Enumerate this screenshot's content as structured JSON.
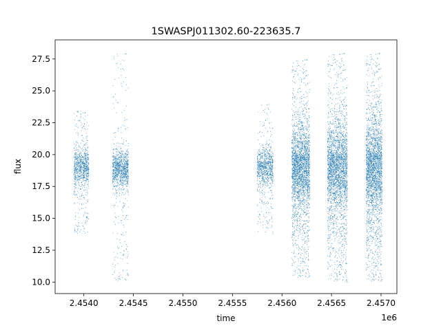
{
  "chart_data": {
    "type": "scatter",
    "title": "1SWASPJ011302.60-223635.7",
    "xlabel": "time",
    "ylabel": "flux",
    "x_offset_label": "1e6",
    "xlim": [
      2453710,
      2457160
    ],
    "ylim": [
      9.1,
      29.0
    ],
    "x_ticks": [
      {
        "value": 2454000,
        "label": "2.4540"
      },
      {
        "value": 2454500,
        "label": "2.4545"
      },
      {
        "value": 2455000,
        "label": "2.4550"
      },
      {
        "value": 2455500,
        "label": "2.4555"
      },
      {
        "value": 2456000,
        "label": "2.4560"
      },
      {
        "value": 2456500,
        "label": "2.4565"
      },
      {
        "value": 2457000,
        "label": "2.4570"
      }
    ],
    "y_ticks": [
      {
        "value": 10.0,
        "label": "10.0"
      },
      {
        "value": 12.5,
        "label": "12.5"
      },
      {
        "value": 15.0,
        "label": "15.0"
      },
      {
        "value": 17.5,
        "label": "17.5"
      },
      {
        "value": 20.0,
        "label": "20.0"
      },
      {
        "value": 22.5,
        "label": "22.5"
      },
      {
        "value": 25.0,
        "label": "25.0"
      },
      {
        "value": 27.5,
        "label": "27.5"
      }
    ],
    "grid": false,
    "marker_color": "#1f77b4",
    "series": [
      {
        "clusters": [
          {
            "t_start": 2453900,
            "t_end": 2454050,
            "flux_center": 19.0,
            "core_min": 17.5,
            "core_max": 20.5,
            "tail_min": 13.8,
            "tail_max": 23.5,
            "n_points": 900
          },
          {
            "t_start": 2454290,
            "t_end": 2454450,
            "flux_center": 18.9,
            "core_min": 17.3,
            "core_max": 20.5,
            "tail_min": 10.0,
            "tail_max": 28.0,
            "n_points": 1100
          },
          {
            "t_start": 2455750,
            "t_end": 2455910,
            "flux_center": 19.0,
            "core_min": 17.3,
            "core_max": 20.3,
            "tail_min": 13.8,
            "tail_max": 24.0,
            "n_points": 900
          },
          {
            "t_start": 2456100,
            "t_end": 2456280,
            "flux_center": 19.0,
            "core_min": 15.5,
            "core_max": 22.5,
            "tail_min": 10.3,
            "tail_max": 27.5,
            "n_points": 2600
          },
          {
            "t_start": 2456460,
            "t_end": 2456660,
            "flux_center": 19.0,
            "core_min": 15.3,
            "core_max": 22.7,
            "tail_min": 10.0,
            "tail_max": 28.0,
            "n_points": 2800
          },
          {
            "t_start": 2456850,
            "t_end": 2457010,
            "flux_center": 19.0,
            "core_min": 15.0,
            "core_max": 23.0,
            "tail_min": 10.0,
            "tail_max": 28.0,
            "n_points": 2600
          }
        ]
      }
    ]
  }
}
